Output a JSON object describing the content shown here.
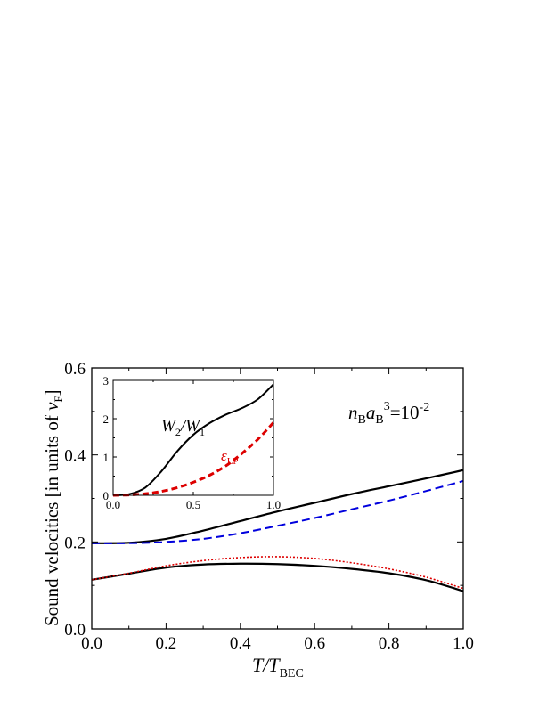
{
  "chart_data": [
    {
      "type": "line",
      "title": "",
      "xlabel": {
        "main": "T/T",
        "sub": "BEC"
      },
      "ylabel": {
        "prefix": "Sound velocities [in units of ",
        "var": "v",
        "sub": "F",
        "suffix": "]"
      },
      "xlim": [
        0.0,
        1.0
      ],
      "ylim": [
        0.0,
        0.6
      ],
      "x_ticks": [
        "0.0",
        "0.2",
        "0.4",
        "0.6",
        "0.8",
        "1.0"
      ],
      "y_ticks": [
        "0.0",
        "0.2",
        "0.4",
        "0.6"
      ],
      "grid": false,
      "annotation": {
        "n": "n",
        "n_sub": "B",
        "a": "a",
        "a_sub": "B",
        "a_sup": "3",
        "rest": "=10",
        "rest_sup": "-2"
      },
      "series": [
        {
          "style": "solid",
          "color": "#000000",
          "x": [
            0.0,
            0.1,
            0.2,
            0.3,
            0.4,
            0.5,
            0.6,
            0.7,
            0.8,
            0.9,
            1.0
          ],
          "y": [
            0.197,
            0.198,
            0.207,
            0.226,
            0.248,
            0.27,
            0.29,
            0.31,
            0.328,
            0.346,
            0.365
          ]
        },
        {
          "style": "dashed",
          "color": "#0000dd",
          "x": [
            0.0,
            0.1,
            0.2,
            0.3,
            0.4,
            0.5,
            0.6,
            0.7,
            0.8,
            0.9,
            1.0
          ],
          "y": [
            0.197,
            0.197,
            0.2,
            0.207,
            0.22,
            0.237,
            0.255,
            0.275,
            0.295,
            0.317,
            0.34
          ]
        },
        {
          "style": "solid",
          "color": "#000000",
          "x": [
            0.0,
            0.1,
            0.2,
            0.3,
            0.4,
            0.5,
            0.6,
            0.7,
            0.8,
            0.9,
            1.0
          ],
          "y": [
            0.113,
            0.127,
            0.141,
            0.148,
            0.15,
            0.149,
            0.145,
            0.138,
            0.128,
            0.112,
            0.087
          ]
        },
        {
          "style": "dotted",
          "color": "#dd0000",
          "x": [
            0.0,
            0.1,
            0.2,
            0.3,
            0.4,
            0.5,
            0.6,
            0.7,
            0.8,
            0.9,
            1.0
          ],
          "y": [
            0.113,
            0.128,
            0.145,
            0.157,
            0.164,
            0.166,
            0.162,
            0.152,
            0.138,
            0.119,
            0.093
          ]
        }
      ]
    },
    {
      "type": "line",
      "title": "",
      "xlabel": "",
      "ylabel": "",
      "xlim": [
        0.0,
        1.0
      ],
      "ylim": [
        0,
        3
      ],
      "x_ticks": [
        "0.0",
        "0.5",
        "1.0"
      ],
      "y_ticks": [
        "0",
        "1",
        "2",
        "3"
      ],
      "grid": false,
      "labels": [
        {
          "main": "W",
          "sub": "2",
          "mid": "/W",
          "sub2": "1",
          "color": "#000000"
        },
        {
          "main": "ε",
          "sub": "LP",
          "color": "#dd0000"
        }
      ],
      "series": [
        {
          "style": "solid",
          "color": "#000000",
          "x": [
            0.0,
            0.1,
            0.2,
            0.3,
            0.4,
            0.5,
            0.6,
            0.7,
            0.8,
            0.9,
            1.0
          ],
          "y": [
            0.0,
            0.03,
            0.2,
            0.62,
            1.15,
            1.58,
            1.88,
            2.1,
            2.27,
            2.5,
            2.9
          ]
        },
        {
          "style": "dashed",
          "color": "#dd0000",
          "x": [
            0.0,
            0.1,
            0.2,
            0.3,
            0.4,
            0.5,
            0.6,
            0.7,
            0.8,
            0.9,
            1.0
          ],
          "y": [
            0.0,
            0.01,
            0.04,
            0.1,
            0.2,
            0.34,
            0.52,
            0.76,
            1.08,
            1.45,
            1.9
          ]
        }
      ]
    }
  ]
}
